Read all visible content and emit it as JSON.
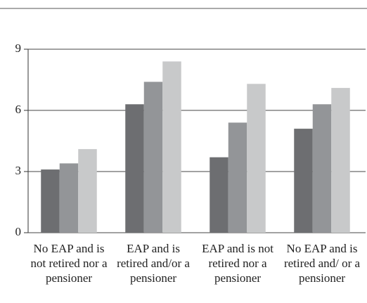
{
  "chart_data": {
    "type": "bar",
    "categories": [
      "No EAP and is not retired nor a pensioner",
      "EAP and is retired and/or a pensioner",
      "EAP and is not retired nor a pensioner",
      "No EAP and is retired and/ or a pensioner"
    ],
    "series": [
      {
        "color": "#6d6e71",
        "values": [
          3.1,
          6.3,
          3.7,
          5.1
        ]
      },
      {
        "color": "#939598",
        "values": [
          3.4,
          7.4,
          5.4,
          6.3
        ]
      },
      {
        "color": "#c8c9ca",
        "values": [
          4.1,
          8.4,
          7.3,
          7.1
        ]
      }
    ],
    "ylim": [
      0,
      9
    ],
    "yticks": [
      0,
      3,
      6,
      9
    ],
    "grid": true
  }
}
